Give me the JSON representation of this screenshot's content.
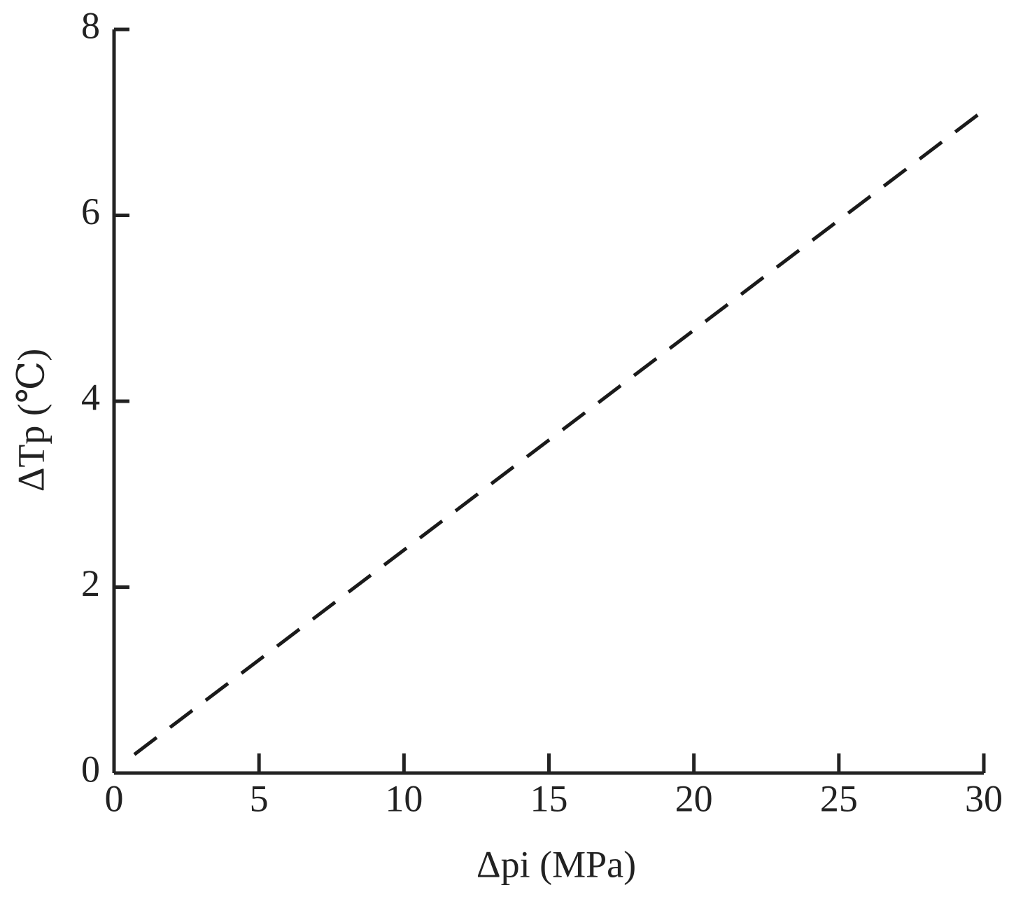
{
  "chart_data": {
    "type": "line",
    "x_label": "Δpi (MPa)",
    "y_label": "ΔTp (℃)",
    "x": [
      0.7,
      30
    ],
    "series": [
      {
        "color": "#1a1a1a",
        "dashed": true,
        "values": [
          0.2,
          7.13
        ]
      }
    ],
    "xlim": [
      0,
      30
    ],
    "xticks": [
      0,
      5,
      10,
      15,
      20,
      25,
      30
    ],
    "ylim": [
      0,
      8
    ],
    "yticks": [
      0,
      2,
      4,
      6,
      8
    ],
    "grid": false
  }
}
